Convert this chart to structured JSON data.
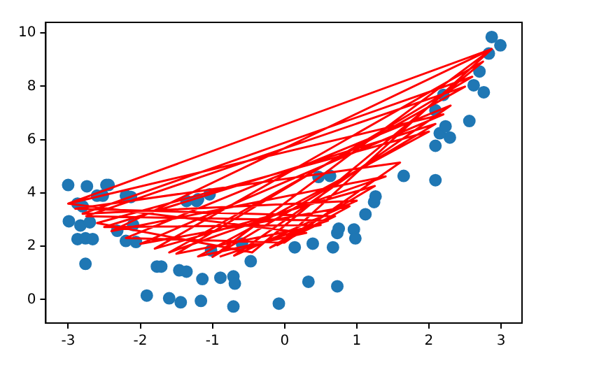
{
  "chart_data": {
    "type": "scatter",
    "xlim": [
      -3.31,
      3.29
    ],
    "ylim": [
      -0.88,
      10.4
    ],
    "xticks": [
      -3,
      -2,
      -1,
      0,
      1,
      2,
      3
    ],
    "yticks": [
      0,
      2,
      4,
      6,
      8,
      10
    ],
    "grid": false,
    "legend": false,
    "series": [
      {
        "type": "scatter",
        "color": "#1f77b4",
        "marker": "circle",
        "x": [
          -3.0,
          -2.74,
          -2.47,
          -2.99,
          -2.87,
          -2.76,
          -2.66,
          -2.76,
          -2.87,
          -2.8,
          -2.83,
          -2.7,
          -2.6,
          -2.52,
          -2.44,
          -2.32,
          -2.2,
          -2.1,
          -2.06,
          -2.2,
          -2.13,
          -1.91,
          -1.77,
          -1.71,
          -1.6,
          -1.44,
          -1.46,
          -1.36,
          -1.16,
          -1.14,
          -1.22,
          -1.04,
          -1.02,
          -0.89,
          -0.71,
          -0.71,
          -0.69,
          -0.59,
          -0.47,
          -1.36,
          -1.2,
          -0.08,
          0.14,
          0.39,
          0.33,
          0.73,
          0.67,
          0.73,
          0.75,
          0.96,
          0.98,
          1.12,
          1.24,
          1.26,
          0.47,
          0.63,
          1.65,
          2.09,
          2.09,
          2.15,
          2.23,
          2.29,
          2.56,
          2.2,
          2.09,
          2.62,
          2.76,
          2.7,
          2.83,
          2.87,
          2.99
        ],
        "values": [
          4.3,
          4.25,
          4.3,
          2.94,
          2.27,
          2.3,
          2.27,
          1.34,
          3.6,
          3.5,
          2.78,
          2.9,
          3.9,
          3.9,
          4.3,
          2.58,
          2.2,
          2.8,
          2.16,
          3.9,
          3.85,
          0.15,
          1.24,
          1.24,
          0.05,
          -0.1,
          1.1,
          1.05,
          -0.05,
          0.77,
          3.7,
          3.95,
          1.85,
          0.82,
          -0.26,
          0.87,
          0.6,
          2.1,
          1.44,
          3.7,
          3.76,
          -0.15,
          1.96,
          2.1,
          0.67,
          0.5,
          1.96,
          2.5,
          2.66,
          2.63,
          2.3,
          3.2,
          3.66,
          3.87,
          4.6,
          4.64,
          4.64,
          4.48,
          5.77,
          6.24,
          6.5,
          6.08,
          6.7,
          7.68,
          7.1,
          8.04,
          7.78,
          8.56,
          9.23,
          9.85,
          9.54
        ]
      },
      {
        "type": "line",
        "color": "#ff0000",
        "marker": "none",
        "line_style": "solid",
        "x": [
          -3.0,
          2.87,
          -1.0,
          2.09,
          -2.5,
          0.5,
          -1.5,
          2.6,
          -2.8,
          1.0,
          -0.7,
          2.3,
          -2.2,
          0.0,
          1.6,
          -2.9,
          0.7,
          -0.2,
          1.25,
          -1.8,
          2.75,
          -0.45,
          -2.6,
          2.0,
          -1.2,
          0.3,
          -3.0,
          2.2,
          -2.0,
          0.9,
          -0.1,
          2.87,
          -2.4,
          1.4,
          -1.6,
          2.5,
          -2.75,
          0.6,
          -0.9
        ],
        "values": [
          3.6,
          9.4,
          1.6,
          6.59,
          2.72,
          2.8,
          1.72,
          8.36,
          3.22,
          3.71,
          1.65,
          7.28,
          2.31,
          2.14,
          5.14,
          3.41,
          3.13,
          1.95,
          4.26,
          1.91,
          8.93,
          1.77,
          2.87,
          6.3,
          1.62,
          2.5,
          3.6,
          6.95,
          2.09,
          3.5,
          2.04,
          9.4,
          2.57,
          4.62,
          1.77,
          7.99,
          3.13,
          2.96,
          1.61
        ]
      }
    ]
  }
}
